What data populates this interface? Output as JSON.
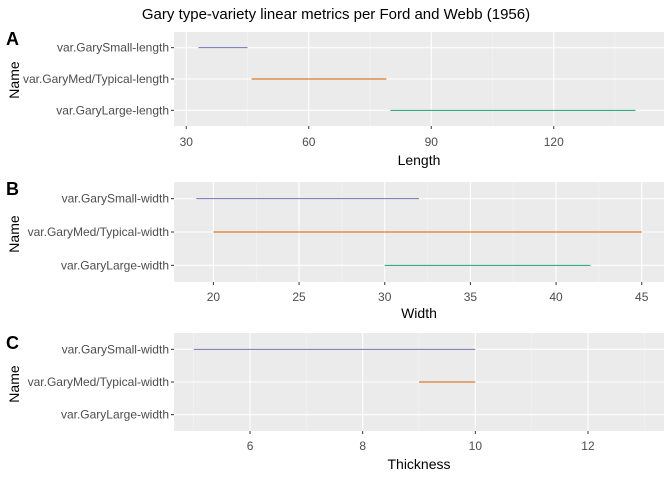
{
  "title": "Gary type-variety linear metrics per Ford and Webb (1956)",
  "chart_data": [
    {
      "type": "range",
      "tag": "A",
      "ylabel": "Name",
      "xlabel": "Length",
      "xlim": [
        27,
        147
      ],
      "xticks": [
        30,
        60,
        90,
        120
      ],
      "grid": true,
      "series": [
        {
          "category": "var.GarySmall-length",
          "start": 33,
          "end": 45,
          "color": "#7570b3"
        },
        {
          "category": "var.GaryMed/Typical-length",
          "start": 46,
          "end": 79,
          "color": "#d95f02"
        },
        {
          "category": "var.GaryLarge-length",
          "start": 80,
          "end": 140,
          "color": "#1b9e77"
        }
      ]
    },
    {
      "type": "range",
      "tag": "B",
      "ylabel": "Name",
      "xlabel": "Width",
      "xlim": [
        17.7,
        46.3
      ],
      "xticks": [
        20,
        25,
        30,
        35,
        40,
        45
      ],
      "grid": true,
      "series": [
        {
          "category": "var.GarySmall-width",
          "start": 19,
          "end": 32,
          "color": "#7570b3"
        },
        {
          "category": "var.GaryMed/Typical-width",
          "start": 20,
          "end": 45,
          "color": "#d95f02"
        },
        {
          "category": "var.GaryLarge-width",
          "start": 30,
          "end": 42,
          "color": "#1b9e77"
        }
      ]
    },
    {
      "type": "range",
      "tag": "C",
      "ylabel": "Name",
      "xlabel": "Thickness",
      "xlim": [
        4.65,
        13.35
      ],
      "xticks": [
        6,
        8,
        10,
        12
      ],
      "grid": true,
      "series": [
        {
          "category": "var.GarySmall-width",
          "start": 5,
          "end": 10,
          "color": "#7570b3"
        },
        {
          "category": "var.GaryMed/Typical-width",
          "start": 9,
          "end": 10,
          "color": "#d95f02"
        },
        {
          "category": "var.GaryLarge-width",
          "start": null,
          "end": null,
          "color": "#1b9e77"
        }
      ]
    }
  ]
}
